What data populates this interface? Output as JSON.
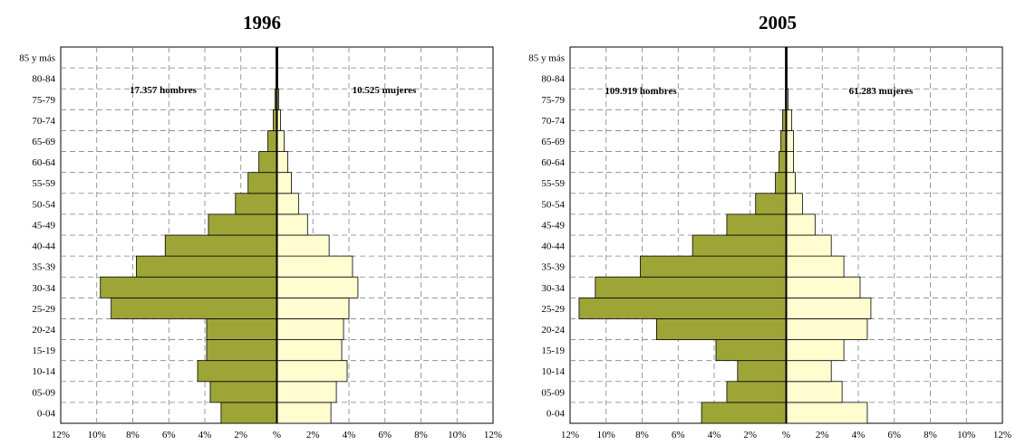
{
  "chart_data": [
    {
      "type": "bar",
      "title": "1996",
      "categories": [
        "0-04",
        "05-09",
        "10-14",
        "15-19",
        "20-24",
        "25-29",
        "30-34",
        "35-39",
        "40-44",
        "45-49",
        "50-54",
        "55-59",
        "60-64",
        "65-69",
        "70-74",
        "75-79",
        "80-84",
        "85 y más"
      ],
      "x_ticks": [
        "12%",
        "10%",
        "8%",
        "6%",
        "4%",
        "2%",
        "%",
        "2%",
        "4%",
        "6%",
        "8%",
        "10%",
        "12%"
      ],
      "xlim": [
        -12,
        12
      ],
      "grid": true,
      "annotations": {
        "left": "17.357 hombres",
        "right": "10.525 mujeres"
      },
      "colors": {
        "men": "#9ea537",
        "women": "#fffdd0"
      },
      "series": [
        {
          "values": [
            3.1,
            3.7,
            4.4,
            3.9,
            3.9,
            9.2,
            9.8,
            7.8,
            6.2,
            3.8,
            2.3,
            1.6,
            1.0,
            0.5,
            0.2,
            0.1,
            0.05,
            0.05
          ]
        },
        {
          "values": [
            3.0,
            3.3,
            3.9,
            3.6,
            3.7,
            4.0,
            4.5,
            4.2,
            2.9,
            1.7,
            1.2,
            0.8,
            0.6,
            0.4,
            0.2,
            0.1,
            0.05,
            0.05
          ]
        }
      ]
    },
    {
      "type": "bar",
      "title": "2005",
      "categories": [
        "0-04",
        "05-09",
        "10-14",
        "15-19",
        "20-24",
        "25-29",
        "30-34",
        "35-39",
        "40-44",
        "45-49",
        "50-54",
        "55-59",
        "60-64",
        "65-69",
        "70-74",
        "75-79",
        "80-84",
        "85 y más"
      ],
      "x_ticks": [
        "12%",
        "10%",
        "8%",
        "6%",
        "4%",
        "2%",
        "%",
        "2%",
        "4%",
        "6%",
        "8%",
        "10%",
        "12%"
      ],
      "xlim": [
        -12,
        12
      ],
      "grid": true,
      "annotations": {
        "left": "109.919 hombres",
        "right": "61.283 mujeres"
      },
      "colors": {
        "men": "#9ea537",
        "women": "#fffdd0"
      },
      "series": [
        {
          "values": [
            4.7,
            3.3,
            2.7,
            3.9,
            7.2,
            11.5,
            10.6,
            8.1,
            5.2,
            3.3,
            1.7,
            0.6,
            0.4,
            0.3,
            0.2,
            0.05,
            0.05,
            0.05
          ]
        },
        {
          "values": [
            4.5,
            3.1,
            2.5,
            3.2,
            4.5,
            4.7,
            4.1,
            3.2,
            2.5,
            1.6,
            0.9,
            0.5,
            0.4,
            0.4,
            0.3,
            0.1,
            0.05,
            0.05
          ]
        }
      ]
    }
  ]
}
